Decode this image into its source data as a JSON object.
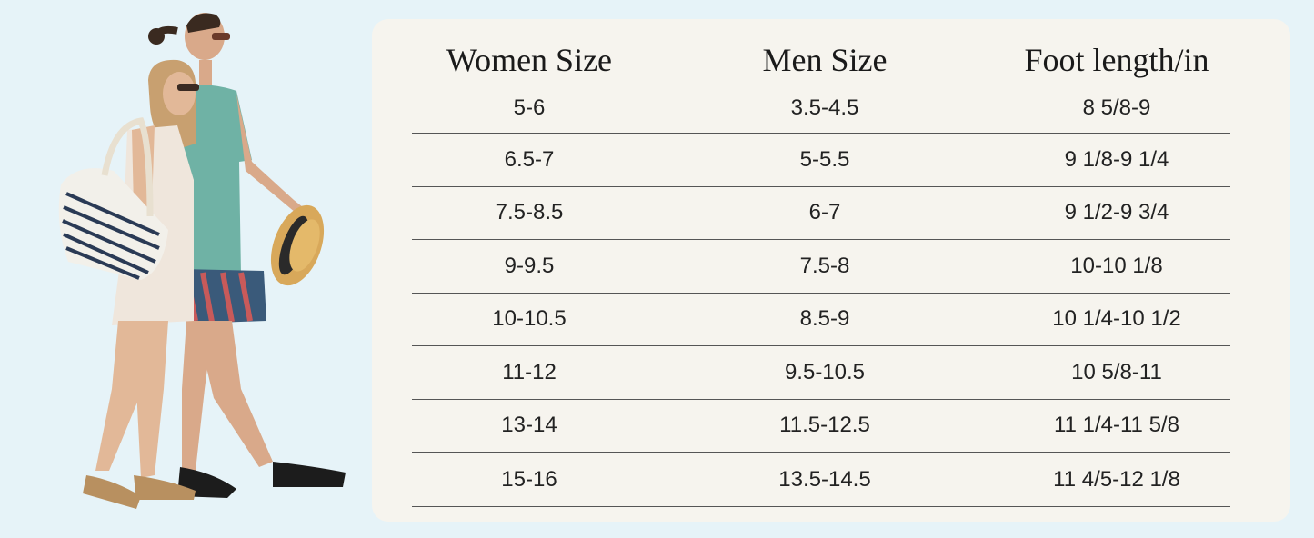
{
  "headers": [
    "Women Size",
    "Men Size",
    "Foot length/in"
  ],
  "rows": [
    [
      "5-6",
      "3.5-4.5",
      "8 5/8-9"
    ],
    [
      "6.5-7",
      "5-5.5",
      "9 1/8-9 1/4"
    ],
    [
      "7.5-8.5",
      "6-7",
      "9 1/2-9 3/4"
    ],
    [
      "9-9.5",
      "7.5-8",
      "10-10 1/8"
    ],
    [
      "10-10.5",
      "8.5-9",
      "10 1/4-10 1/2"
    ],
    [
      "11-12",
      "9.5-10.5",
      "10 5/8-11"
    ],
    [
      "13-14",
      "11.5-12.5",
      "11 1/4-11 5/8"
    ],
    [
      "15-16",
      "13.5-14.5",
      "11 4/5-12 1/8"
    ]
  ]
}
